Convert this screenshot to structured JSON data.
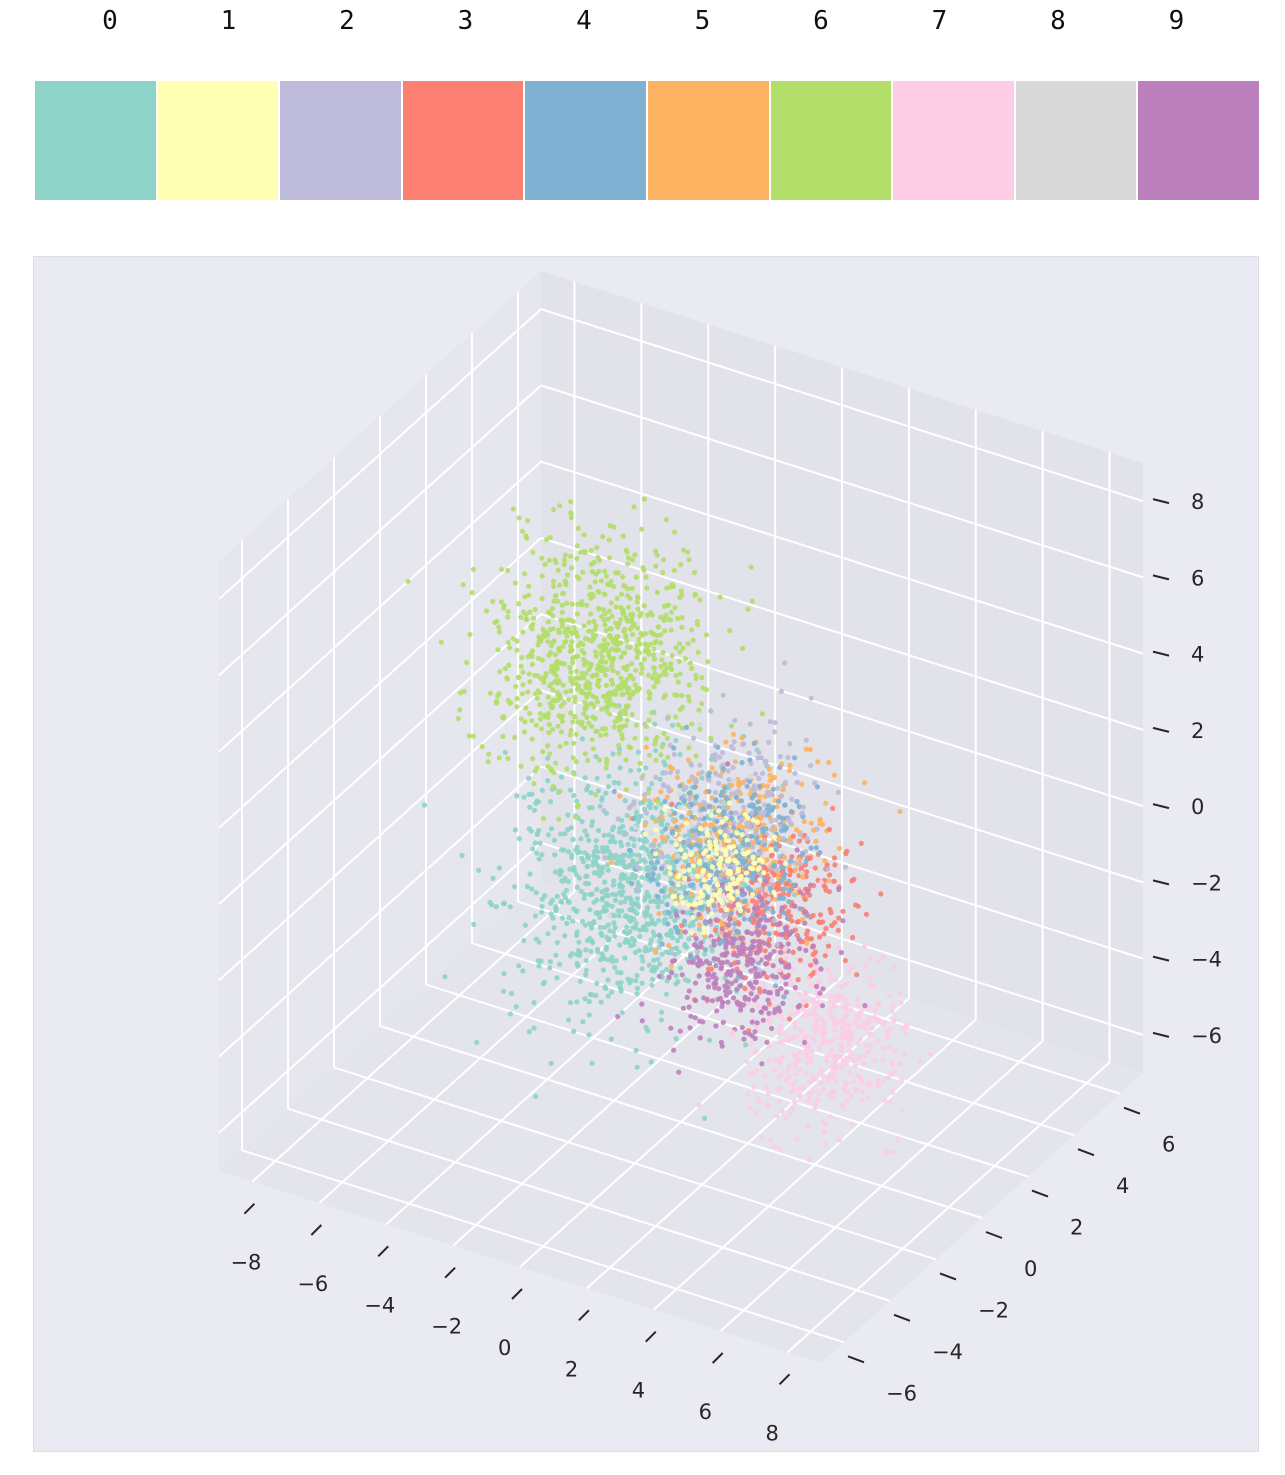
{
  "legend": {
    "items": [
      {
        "label": "0",
        "color": "#8dd3c7"
      },
      {
        "label": "1",
        "color": "#ffffb3"
      },
      {
        "label": "2",
        "color": "#bebada"
      },
      {
        "label": "3",
        "color": "#fb8072"
      },
      {
        "label": "4",
        "color": "#80b1d3"
      },
      {
        "label": "5",
        "color": "#fdb462"
      },
      {
        "label": "6",
        "color": "#b3de69"
      },
      {
        "label": "7",
        "color": "#fccde5"
      },
      {
        "label": "8",
        "color": "#d9d9d9"
      },
      {
        "label": "9",
        "color": "#bc80bd"
      }
    ]
  },
  "chart_data": {
    "type": "scatter",
    "projection": "3d",
    "title": "",
    "xlabel": "",
    "ylabel": "",
    "zlabel": "",
    "xlim": [
      -9,
      9
    ],
    "ylim": [
      -7,
      7
    ],
    "zlim": [
      -7,
      9
    ],
    "xticks": [
      "−8",
      "−6",
      "−4",
      "−2",
      "0",
      "2",
      "4",
      "6",
      "8"
    ],
    "yticks": [
      "−6",
      "−4",
      "−2",
      "0",
      "2",
      "4",
      "6"
    ],
    "zticks": [
      "−6",
      "−4",
      "−2",
      "0",
      "2",
      "4",
      "6",
      "8"
    ],
    "grid": true,
    "background": "#eaeaf2",
    "series": [
      {
        "label": "0",
        "center": [
          -3.5,
          3.0,
          -3.5
        ],
        "spread": 1.4,
        "count": 900
      },
      {
        "label": "1",
        "center": [
          3.5,
          -3.5,
          2.5
        ],
        "spread": 0.6,
        "count": 160
      },
      {
        "label": "2",
        "center": [
          2.0,
          -0.5,
          2.0
        ],
        "spread": 1.2,
        "count": 240
      },
      {
        "label": "3",
        "center": [
          2.5,
          0.5,
          -1.0
        ],
        "spread": 0.9,
        "count": 300
      },
      {
        "label": "4",
        "center": [
          2.5,
          -1.5,
          1.5
        ],
        "spread": 1.0,
        "count": 340
      },
      {
        "label": "5",
        "center": [
          1.0,
          1.0,
          0.0
        ],
        "spread": 1.0,
        "count": 380
      },
      {
        "label": "6",
        "center": [
          -2.5,
          0.0,
          4.5
        ],
        "spread": 1.3,
        "count": 850
      },
      {
        "label": "7",
        "center": [
          5.0,
          -1.0,
          -3.0
        ],
        "spread": 1.0,
        "count": 420
      },
      {
        "label": "8",
        "center": [
          2.0,
          -1.0,
          1.0
        ],
        "spread": 1.0,
        "count": 60
      },
      {
        "label": "9",
        "center": [
          3.5,
          -2.5,
          -0.5
        ],
        "spread": 0.9,
        "count": 320
      }
    ]
  }
}
